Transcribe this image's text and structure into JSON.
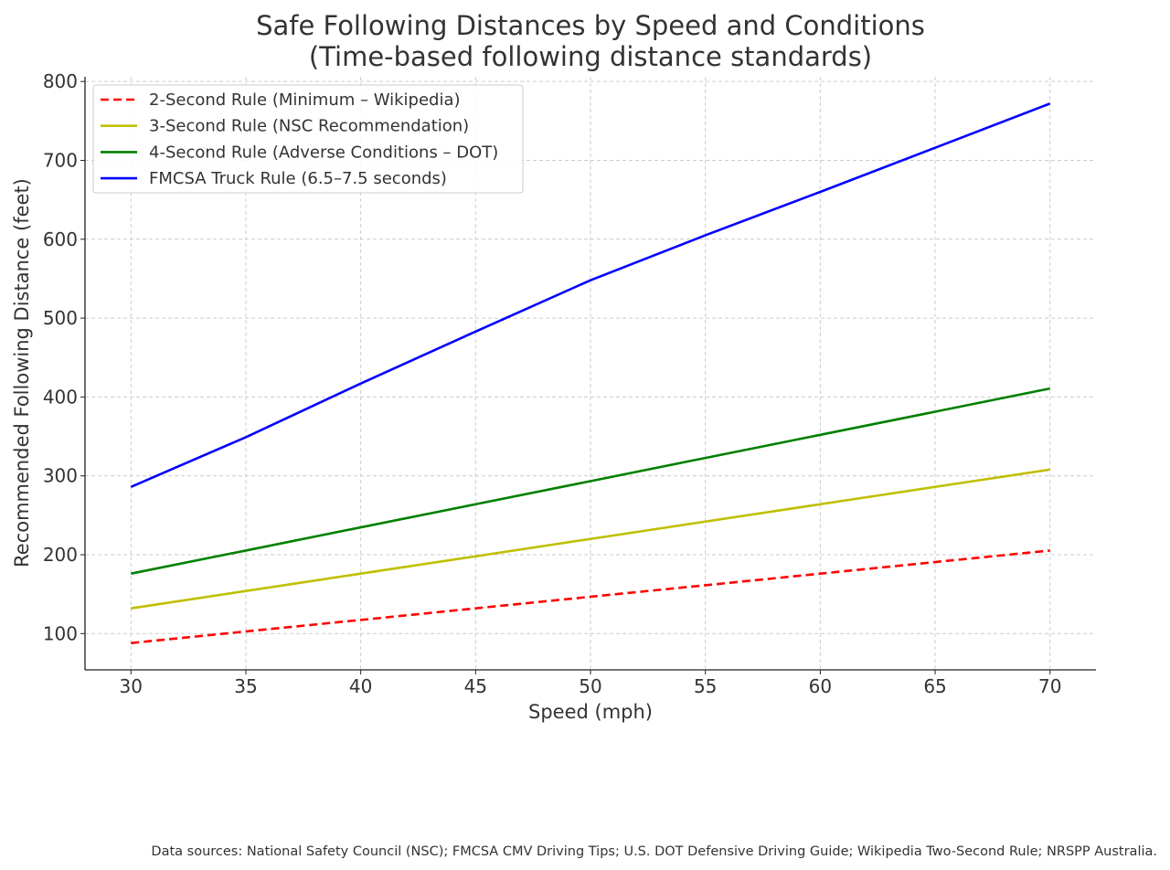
{
  "chart_data": {
    "type": "line",
    "title": "Safe Following Distances by Speed and Conditions",
    "subtitle": "(Time-based following distance standards)",
    "xlabel": "Speed (mph)",
    "ylabel": "Recommended Following Distance (feet)",
    "xlim": [
      28,
      72
    ],
    "ylim": [
      54,
      806
    ],
    "xticks": [
      30,
      35,
      40,
      45,
      50,
      55,
      60,
      65,
      70
    ],
    "yticks": [
      100,
      200,
      300,
      400,
      500,
      600,
      700,
      800
    ],
    "grid": true,
    "legend_position": "top-left",
    "x": [
      30,
      35,
      40,
      45,
      50,
      55,
      60,
      65,
      70
    ],
    "series": [
      {
        "name": "2-Second Rule (Minimum – Wikipedia)",
        "color": "#ff0000",
        "dashed": true,
        "values": [
          88,
          102.7,
          117.3,
          132,
          146.7,
          161.3,
          176,
          190.7,
          205.3
        ]
      },
      {
        "name": "3-Second Rule (NSC Recommendation)",
        "color": "#bfbf00",
        "dashed": false,
        "values": [
          132,
          154,
          176,
          198,
          220,
          242,
          264,
          286,
          308
        ]
      },
      {
        "name": "4-Second Rule (Adverse Conditions – DOT)",
        "color": "#008000",
        "dashed": false,
        "values": [
          176,
          205.3,
          234.7,
          264,
          293.3,
          322.7,
          352,
          381.3,
          410.7
        ]
      },
      {
        "name": "FMCSA Truck Rule (6.5–7.5 seconds)",
        "color": "#0000ff",
        "dashed": false,
        "values": [
          286,
          349,
          417,
          483,
          548,
          605,
          660,
          716,
          772
        ]
      }
    ]
  },
  "footnote": "Data sources: National Safety Council (NSC); FMCSA CMV Driving Tips; U.S. DOT Defensive Driving Guide; Wikipedia Two-Second Rule; NRSPP Australia."
}
